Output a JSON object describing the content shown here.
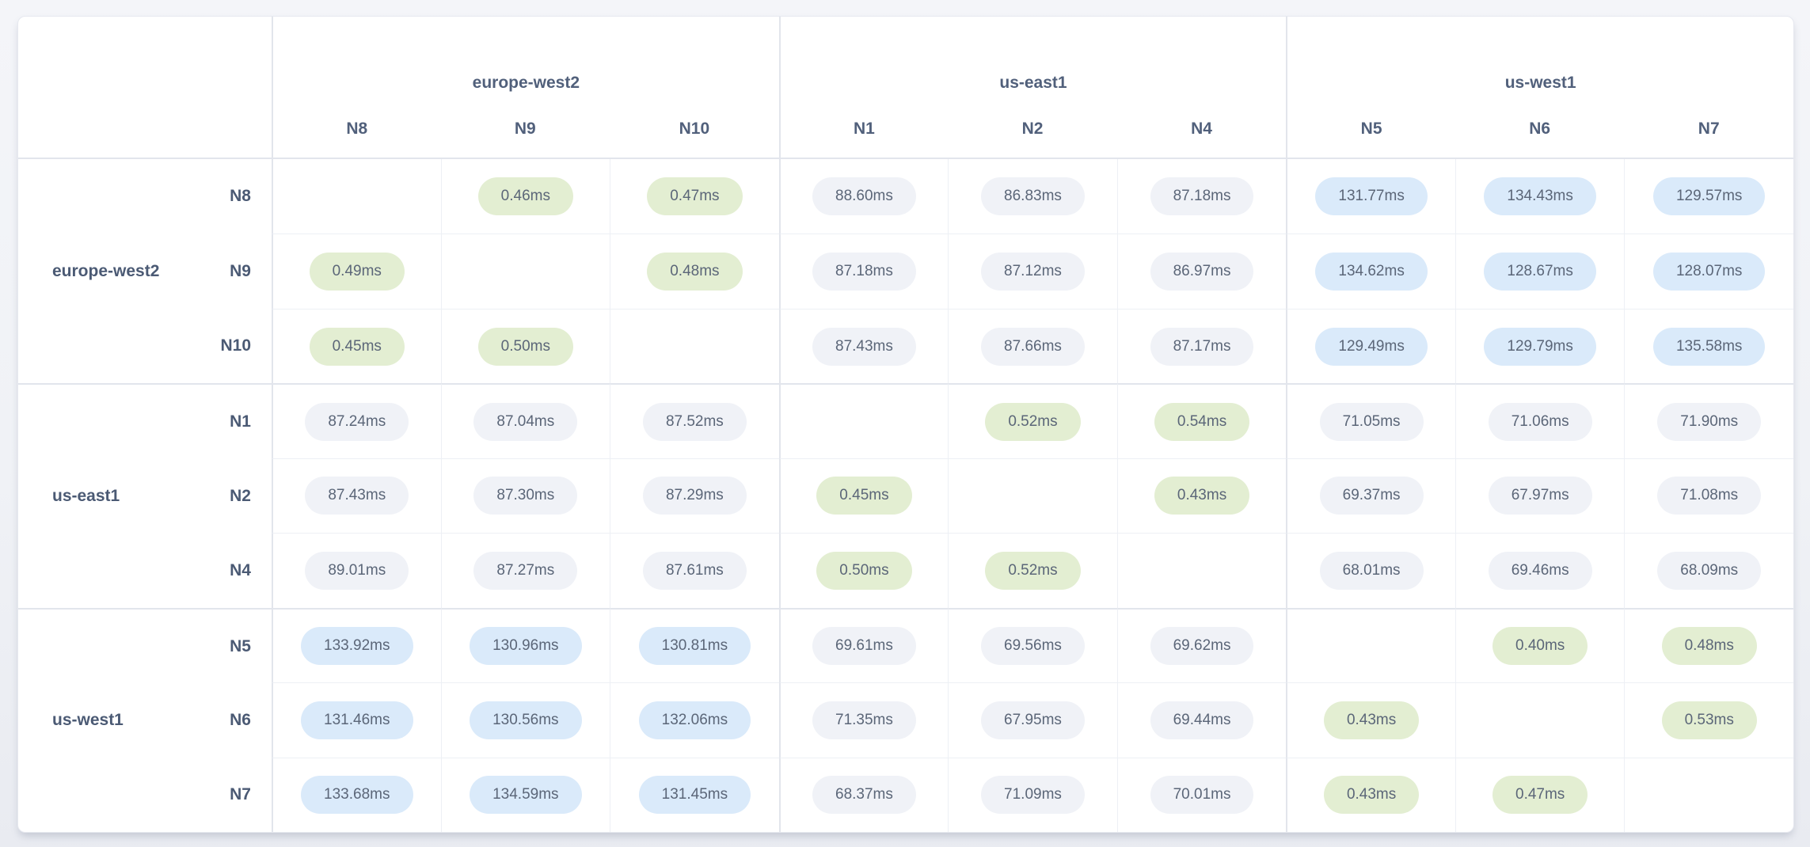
{
  "colors": {
    "pill_low": "#e3eed2",
    "pill_mid": "#f0f2f7",
    "pill_high": "#daeafa",
    "header_text": "#51607b"
  },
  "matrix": {
    "unit": "ms",
    "col_groups": [
      {
        "region": "europe-west2",
        "nodes": [
          "N8",
          "N9",
          "N10"
        ]
      },
      {
        "region": "us-east1",
        "nodes": [
          "N1",
          "N2",
          "N4"
        ]
      },
      {
        "region": "us-west1",
        "nodes": [
          "N5",
          "N6",
          "N7"
        ]
      }
    ],
    "row_groups": [
      {
        "region": "europe-west2",
        "rows": [
          {
            "node": "N8",
            "cells": [
              "",
              "0.46ms",
              "0.47ms",
              "88.60ms",
              "86.83ms",
              "87.18ms",
              "131.77ms",
              "134.43ms",
              "129.57ms"
            ]
          },
          {
            "node": "N9",
            "cells": [
              "0.49ms",
              "",
              "0.48ms",
              "87.18ms",
              "87.12ms",
              "86.97ms",
              "134.62ms",
              "128.67ms",
              "128.07ms"
            ]
          },
          {
            "node": "N10",
            "cells": [
              "0.45ms",
              "0.50ms",
              "",
              "87.43ms",
              "87.66ms",
              "87.17ms",
              "129.49ms",
              "129.79ms",
              "135.58ms"
            ]
          }
        ]
      },
      {
        "region": "us-east1",
        "rows": [
          {
            "node": "N1",
            "cells": [
              "87.24ms",
              "87.04ms",
              "87.52ms",
              "",
              "0.52ms",
              "0.54ms",
              "71.05ms",
              "71.06ms",
              "71.90ms"
            ]
          },
          {
            "node": "N2",
            "cells": [
              "87.43ms",
              "87.30ms",
              "87.29ms",
              "0.45ms",
              "",
              "0.43ms",
              "69.37ms",
              "67.97ms",
              "71.08ms"
            ]
          },
          {
            "node": "N4",
            "cells": [
              "89.01ms",
              "87.27ms",
              "87.61ms",
              "0.50ms",
              "0.52ms",
              "",
              "68.01ms",
              "69.46ms",
              "68.09ms"
            ]
          }
        ]
      },
      {
        "region": "us-west1",
        "rows": [
          {
            "node": "N5",
            "cells": [
              "133.92ms",
              "130.96ms",
              "130.81ms",
              "69.61ms",
              "69.56ms",
              "69.62ms",
              "",
              "0.40ms",
              "0.48ms"
            ]
          },
          {
            "node": "N6",
            "cells": [
              "131.46ms",
              "130.56ms",
              "132.06ms",
              "71.35ms",
              "67.95ms",
              "69.44ms",
              "0.43ms",
              "",
              "0.53ms"
            ]
          },
          {
            "node": "N7",
            "cells": [
              "133.68ms",
              "134.59ms",
              "131.45ms",
              "68.37ms",
              "71.09ms",
              "70.01ms",
              "0.43ms",
              "0.47ms",
              ""
            ]
          }
        ]
      }
    ]
  }
}
